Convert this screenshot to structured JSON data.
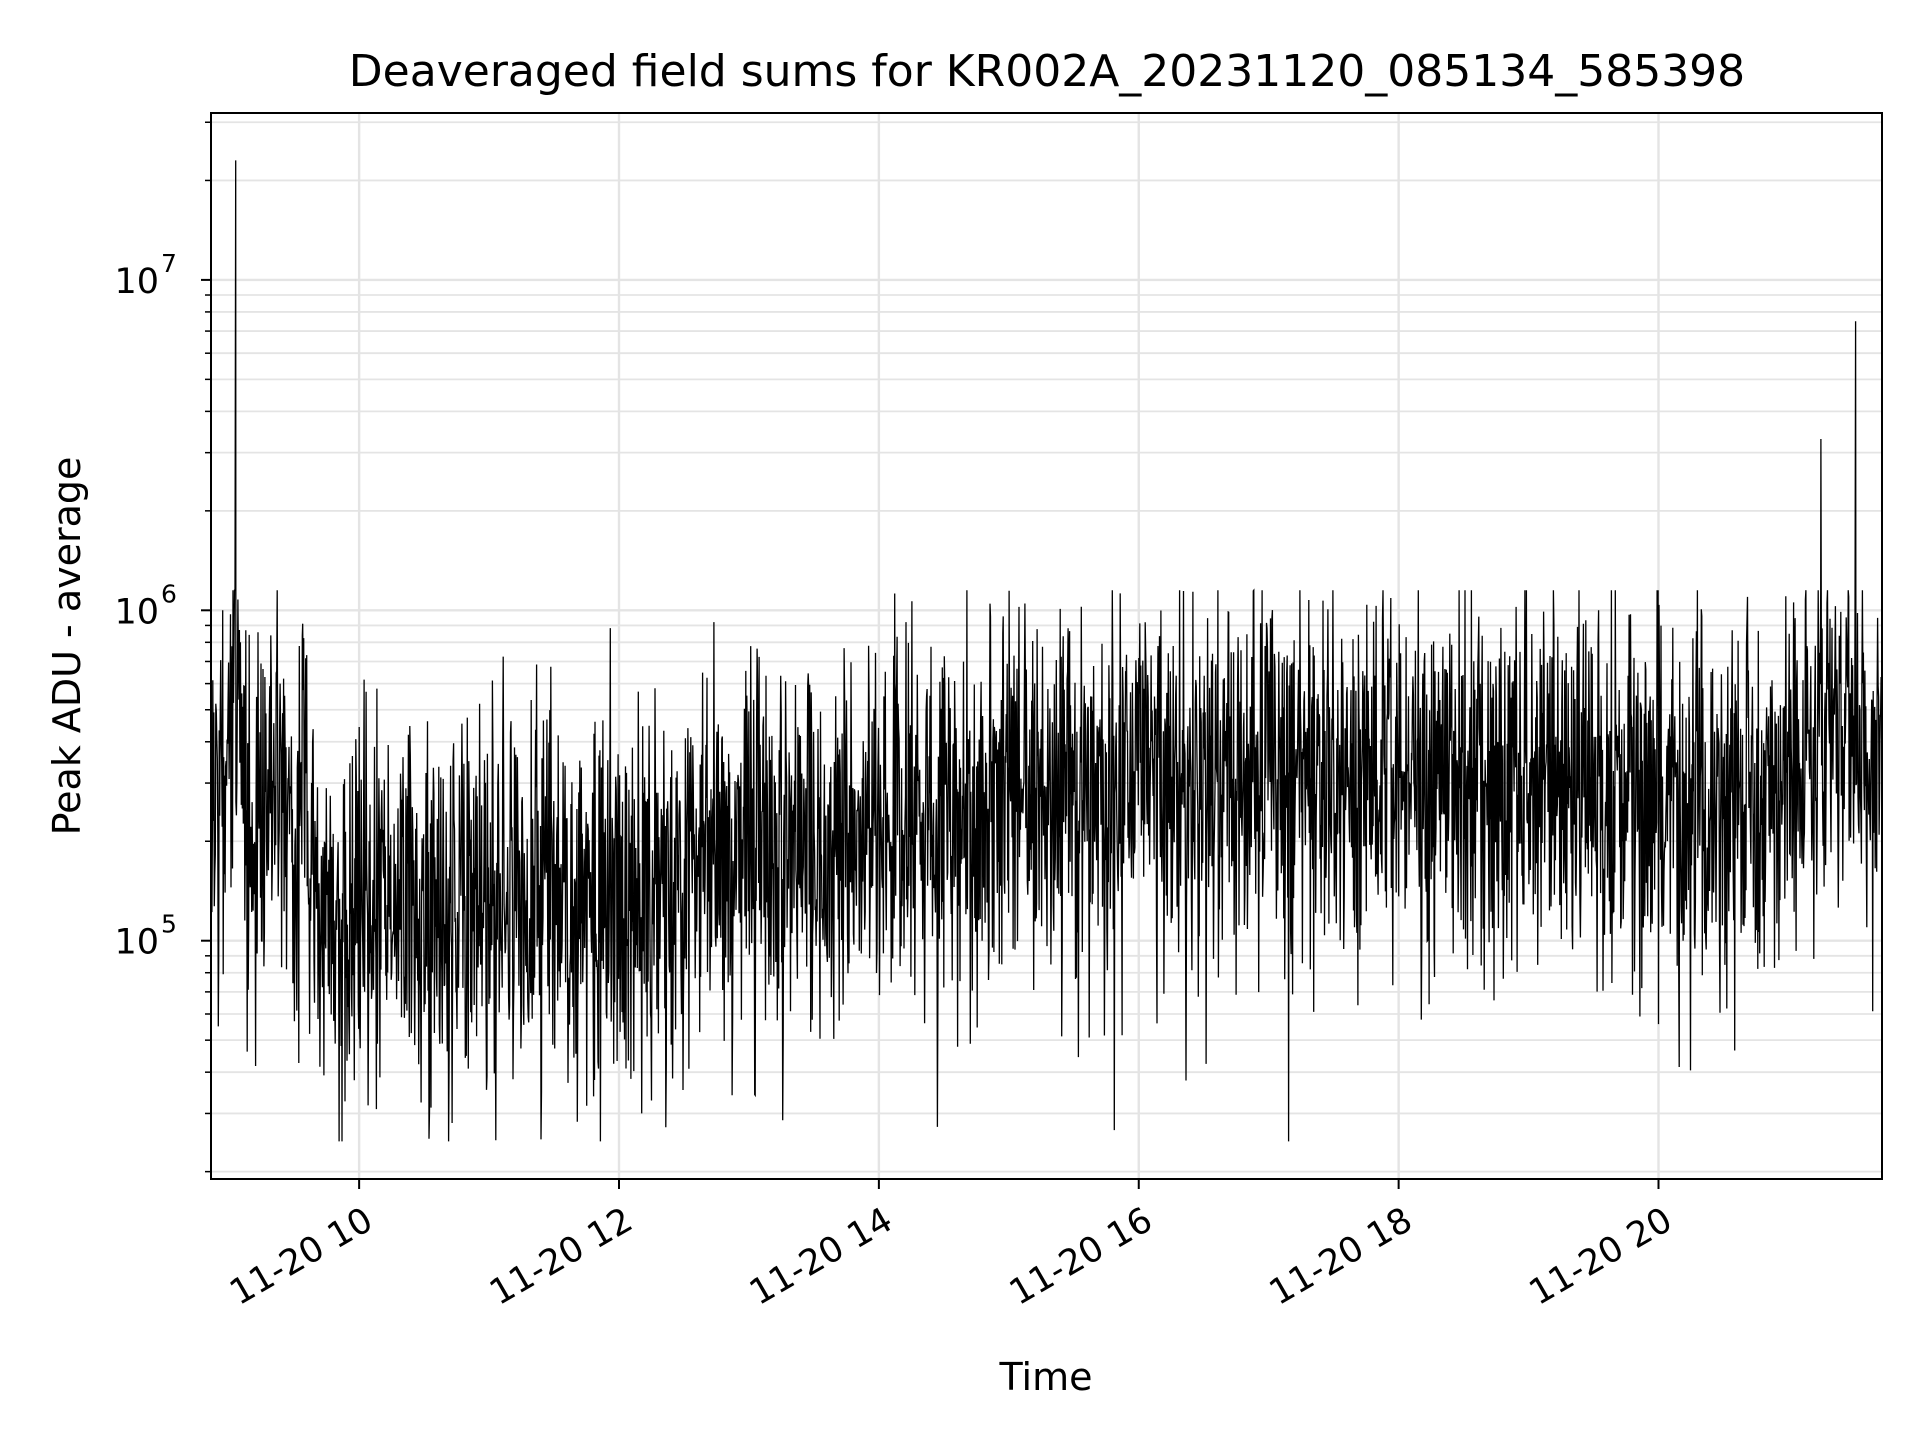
{
  "chart_data": {
    "type": "line",
    "title": "Deaveraged field sums for KR002A_20231120_085134_585398",
    "xlabel": "Time",
    "ylabel": "Peak ADU - average",
    "yscale": "log",
    "ylim": [
      19000,
      32000000
    ],
    "xlim_hours": [
      8.86,
      21.72
    ],
    "x_tick_labels": [
      "11-20 10",
      "11-20 12",
      "11-20 14",
      "11-20 16",
      "11-20 18",
      "11-20 20"
    ],
    "y_tick_labels": [
      {
        "base": "10",
        "exp": "5"
      },
      {
        "base": "10",
        "exp": "6"
      },
      {
        "base": "10",
        "exp": "7"
      }
    ],
    "grid": true,
    "line_color": "#000000",
    "series": [
      {
        "x": [
          "11-20 08:52",
          "11-20 09:00",
          "11-20 09:04",
          "11-20 09:10",
          "11-20 09:20",
          "11-20 09:35",
          "11-20 09:45",
          "11-20 10:00",
          "11-20 10:30",
          "11-20 11:00",
          "11-20 11:30",
          "11-20 12:00",
          "11-20 12:30",
          "11-20 13:00",
          "11-20 13:30",
          "11-20 14:00",
          "11-20 14:30",
          "11-20 15:00",
          "11-20 15:30",
          "11-20 16:00",
          "11-20 16:30",
          "11-20 17:00",
          "11-20 17:30",
          "11-20 18:00",
          "11-20 18:30",
          "11-20 19:00",
          "11-20 19:30",
          "11-20 20:00",
          "11-20 20:30",
          "11-20 21:00",
          "11-20 21:15",
          "11-20 21:30",
          "11-20 21:43"
        ],
        "y": [
          250000,
          300000,
          1000000,
          200000,
          230000,
          250000,
          130000,
          130000,
          140000,
          140000,
          140000,
          130000,
          160000,
          180000,
          200000,
          220000,
          260000,
          290000,
          280000,
          300000,
          310000,
          320000,
          310000,
          300000,
          310000,
          300000,
          290000,
          270000,
          260000,
          280000,
          450000,
          440000,
          400000
        ],
        "spikes": [
          {
            "x": "11-20 09:03",
            "y": 23000000
          },
          {
            "x": "11-20 21:15",
            "y": 3300000
          },
          {
            "x": "11-20 21:31",
            "y": 7500000
          }
        ]
      }
    ]
  }
}
